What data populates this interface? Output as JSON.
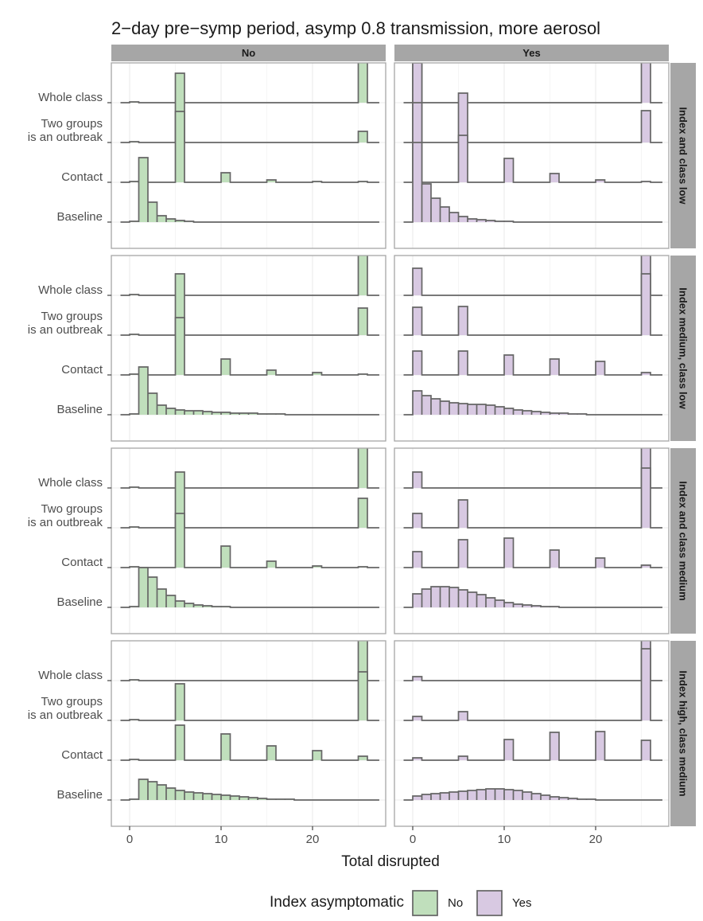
{
  "chart_data": {
    "type": "ridgeline-histogram",
    "title": "2−day pre−symp period, asymp 0.8 transmission, more aerosol",
    "xlabel": "Total disrupted",
    "x_ticks": [
      0,
      10,
      20
    ],
    "xlim": [
      -2,
      28
    ],
    "columns": [
      "No",
      "Yes"
    ],
    "rows": [
      "Index and class low",
      "Index medium, class low",
      "Index and class medium",
      "Index high, class medium"
    ],
    "strategies": [
      "Whole class",
      "Two groups\nis an outbreak",
      "Contact",
      "Baseline"
    ],
    "strategy_labels": [
      [
        "Whole class"
      ],
      [
        "Two groups",
        "is an outbreak"
      ],
      [
        "Contact"
      ],
      [
        "Baseline"
      ]
    ],
    "bins_start": 0,
    "bin_width": 1,
    "colors": {
      "No": "#c0dfbc",
      "Yes": "#d8c9e2",
      "line": "#666666"
    },
    "legend": {
      "title": "Index asymptomatic",
      "entries": [
        "No",
        "Yes"
      ],
      "position": "bottom"
    },
    "panels": [
      {
        "row": 0,
        "col": 0,
        "series": [
          {
            "strategy": "Whole class",
            "spikes": [
              [
                0,
                0.01
              ],
              [
                25,
                1.0
              ]
            ]
          },
          {
            "strategy": "Two groups\nis an outbreak",
            "spikes": [
              [
                0,
                0.01
              ],
              [
                5,
                0.87
              ],
              [
                25,
                0.14
              ]
            ]
          },
          {
            "strategy": "Contact",
            "spikes": [
              [
                0,
                0.01
              ],
              [
                5,
                0.89
              ],
              [
                10,
                0.12
              ],
              [
                15,
                0.03
              ],
              [
                20,
                0.01
              ],
              [
                25,
                0.01
              ]
            ]
          },
          {
            "strategy": "Baseline",
            "values": [
              0.01,
              0.81,
              0.25,
              0.08,
              0.04,
              0.02,
              0.01
            ]
          }
        ]
      },
      {
        "row": 0,
        "col": 1,
        "series": [
          {
            "strategy": "Whole class",
            "spikes": [
              [
                0,
                1.0
              ],
              [
                25,
                1.0
              ]
            ]
          },
          {
            "strategy": "Two groups\nis an outbreak",
            "spikes": [
              [
                0,
                1.0
              ],
              [
                5,
                0.62
              ],
              [
                25,
                0.4
              ]
            ]
          },
          {
            "strategy": "Contact",
            "spikes": [
              [
                0,
                1.0
              ],
              [
                5,
                0.59
              ],
              [
                10,
                0.3
              ],
              [
                15,
                0.11
              ],
              [
                20,
                0.03
              ],
              [
                25,
                0.01
              ]
            ]
          },
          {
            "strategy": "Baseline",
            "values": [
              1.0,
              0.48,
              0.3,
              0.19,
              0.12,
              0.07,
              0.04,
              0.03,
              0.02,
              0.01,
              0.01
            ]
          }
        ]
      },
      {
        "row": 1,
        "col": 0,
        "series": [
          {
            "strategy": "Whole class",
            "spikes": [
              [
                0,
                0.01
              ],
              [
                25,
                1.0
              ]
            ]
          },
          {
            "strategy": "Two groups\nis an outbreak",
            "spikes": [
              [
                0,
                0.01
              ],
              [
                5,
                0.77
              ],
              [
                25,
                0.34
              ]
            ]
          },
          {
            "strategy": "Contact",
            "spikes": [
              [
                0,
                0.01
              ],
              [
                5,
                0.72
              ],
              [
                10,
                0.2
              ],
              [
                15,
                0.06
              ],
              [
                20,
                0.03
              ],
              [
                25,
                0.01
              ]
            ]
          },
          {
            "strategy": "Baseline",
            "values": [
              0.01,
              0.6,
              0.27,
              0.12,
              0.08,
              0.06,
              0.05,
              0.05,
              0.04,
              0.03,
              0.03,
              0.02,
              0.02,
              0.02,
              0.01,
              0.01,
              0.01
            ]
          }
        ]
      },
      {
        "row": 1,
        "col": 1,
        "series": [
          {
            "strategy": "Whole class",
            "spikes": [
              [
                0,
                0.34
              ],
              [
                25,
                1.0
              ]
            ]
          },
          {
            "strategy": "Two groups\nis an outbreak",
            "spikes": [
              [
                0,
                0.35
              ],
              [
                5,
                0.36
              ],
              [
                25,
                0.77
              ]
            ]
          },
          {
            "strategy": "Contact",
            "spikes": [
              [
                0,
                0.3
              ],
              [
                5,
                0.3
              ],
              [
                10,
                0.25
              ],
              [
                15,
                0.2
              ],
              [
                20,
                0.17
              ],
              [
                25,
                0.03
              ]
            ]
          },
          {
            "strategy": "Baseline",
            "values": [
              0.3,
              0.24,
              0.2,
              0.17,
              0.15,
              0.14,
              0.13,
              0.13,
              0.12,
              0.1,
              0.08,
              0.06,
              0.05,
              0.04,
              0.03,
              0.02,
              0.02,
              0.01,
              0.01
            ]
          }
        ]
      },
      {
        "row": 2,
        "col": 0,
        "series": [
          {
            "strategy": "Whole class",
            "spikes": [
              [
                0,
                0.01
              ],
              [
                25,
                1.0
              ]
            ]
          },
          {
            "strategy": "Two groups\nis an outbreak",
            "spikes": [
              [
                0,
                0.01
              ],
              [
                5,
                0.7
              ],
              [
                25,
                0.37
              ]
            ]
          },
          {
            "strategy": "Contact",
            "spikes": [
              [
                0,
                0.01
              ],
              [
                5,
                0.68
              ],
              [
                10,
                0.27
              ],
              [
                15,
                0.08
              ],
              [
                20,
                0.02
              ],
              [
                25,
                0.01
              ]
            ]
          },
          {
            "strategy": "Baseline",
            "values": [
              0.01,
              0.5,
              0.38,
              0.23,
              0.15,
              0.08,
              0.05,
              0.03,
              0.02,
              0.01,
              0.01
            ]
          }
        ]
      },
      {
        "row": 2,
        "col": 1,
        "series": [
          {
            "strategy": "Whole class",
            "spikes": [
              [
                0,
                0.2
              ],
              [
                25,
                1.0
              ]
            ]
          },
          {
            "strategy": "Two groups\nis an outbreak",
            "spikes": [
              [
                0,
                0.18
              ],
              [
                5,
                0.35
              ],
              [
                25,
                0.75
              ]
            ]
          },
          {
            "strategy": "Contact",
            "spikes": [
              [
                0,
                0.2
              ],
              [
                5,
                0.35
              ],
              [
                10,
                0.37
              ],
              [
                15,
                0.22
              ],
              [
                20,
                0.12
              ],
              [
                25,
                0.03
              ]
            ]
          },
          {
            "strategy": "Baseline",
            "values": [
              0.17,
              0.23,
              0.26,
              0.26,
              0.25,
              0.22,
              0.19,
              0.16,
              0.12,
              0.09,
              0.06,
              0.04,
              0.03,
              0.02,
              0.01,
              0.01
            ]
          }
        ]
      },
      {
        "row": 3,
        "col": 0,
        "series": [
          {
            "strategy": "Whole class",
            "spikes": [
              [
                0,
                0.01
              ],
              [
                25,
                1.0
              ]
            ]
          },
          {
            "strategy": "Two groups\nis an outbreak",
            "spikes": [
              [
                0,
                0.01
              ],
              [
                5,
                0.46
              ],
              [
                25,
                0.61
              ]
            ]
          },
          {
            "strategy": "Contact",
            "spikes": [
              [
                0,
                0.01
              ],
              [
                5,
                0.44
              ],
              [
                10,
                0.33
              ],
              [
                15,
                0.18
              ],
              [
                20,
                0.12
              ],
              [
                25,
                0.05
              ]
            ]
          },
          {
            "strategy": "Baseline",
            "values": [
              0.01,
              0.26,
              0.23,
              0.19,
              0.15,
              0.12,
              0.1,
              0.09,
              0.08,
              0.07,
              0.06,
              0.05,
              0.04,
              0.03,
              0.02,
              0.01,
              0.01,
              0.01
            ]
          }
        ]
      },
      {
        "row": 3,
        "col": 1,
        "series": [
          {
            "strategy": "Whole class",
            "spikes": [
              [
                0,
                0.05
              ],
              [
                25,
                1.0
              ]
            ]
          },
          {
            "strategy": "Two groups\nis an outbreak",
            "spikes": [
              [
                0,
                0.05
              ],
              [
                5,
                0.11
              ],
              [
                25,
                0.9
              ]
            ]
          },
          {
            "strategy": "Contact",
            "spikes": [
              [
                0,
                0.03
              ],
              [
                5,
                0.05
              ],
              [
                10,
                0.26
              ],
              [
                15,
                0.35
              ],
              [
                20,
                0.36
              ],
              [
                25,
                0.25
              ]
            ]
          },
          {
            "strategy": "Baseline",
            "values": [
              0.05,
              0.07,
              0.08,
              0.09,
              0.1,
              0.11,
              0.12,
              0.13,
              0.14,
              0.14,
              0.13,
              0.12,
              0.1,
              0.08,
              0.06,
              0.04,
              0.03,
              0.02,
              0.01,
              0.01
            ]
          }
        ]
      }
    ]
  }
}
